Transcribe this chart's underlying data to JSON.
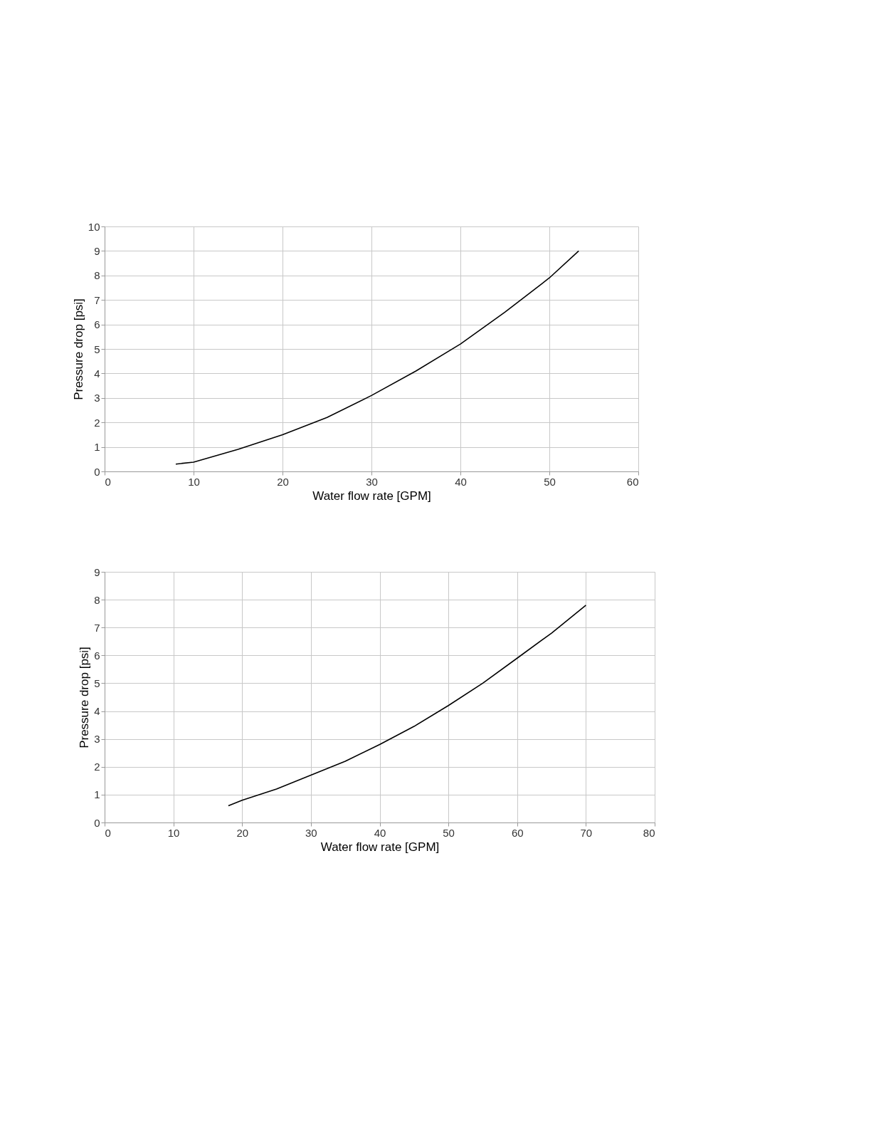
{
  "chart_data": [
    {
      "type": "line",
      "xlabel": "Water flow rate [GPM]",
      "ylabel": "Pressure drop [psi]",
      "x": [
        8,
        10,
        15,
        20,
        25,
        30,
        35,
        40,
        45,
        50,
        53.3
      ],
      "series": [
        {
          "color": "#000000",
          "values": [
            0.3,
            0.38,
            0.9,
            1.5,
            2.2,
            3.1,
            4.1,
            5.2,
            6.5,
            7.9,
            9.0
          ]
        }
      ],
      "xlim": [
        0,
        60
      ],
      "xticks": [
        0,
        10,
        20,
        30,
        40,
        50,
        60
      ],
      "ylim": [
        0,
        10
      ],
      "yticks": [
        0,
        1,
        2,
        3,
        4,
        5,
        6,
        7,
        8,
        9,
        10
      ],
      "grid": true,
      "marker": "none",
      "line_style": "solid"
    },
    {
      "type": "line",
      "xlabel": "Water flow rate [GPM]",
      "ylabel": "Pressure drop [psi]",
      "x": [
        18,
        20,
        25,
        30,
        35,
        40,
        45,
        50,
        55,
        60,
        65,
        70
      ],
      "series": [
        {
          "color": "#000000",
          "values": [
            0.6,
            0.8,
            1.2,
            1.7,
            2.2,
            2.8,
            3.45,
            4.2,
            5.0,
            5.9,
            6.8,
            7.8
          ]
        }
      ],
      "xlim": [
        0,
        80
      ],
      "xticks": [
        0,
        10,
        20,
        30,
        40,
        50,
        60,
        70,
        80
      ],
      "ylim": [
        0,
        9
      ],
      "yticks": [
        0,
        1,
        2,
        3,
        4,
        5,
        6,
        7,
        8,
        9
      ],
      "grid": true,
      "marker": "none",
      "line_style": "solid"
    }
  ]
}
